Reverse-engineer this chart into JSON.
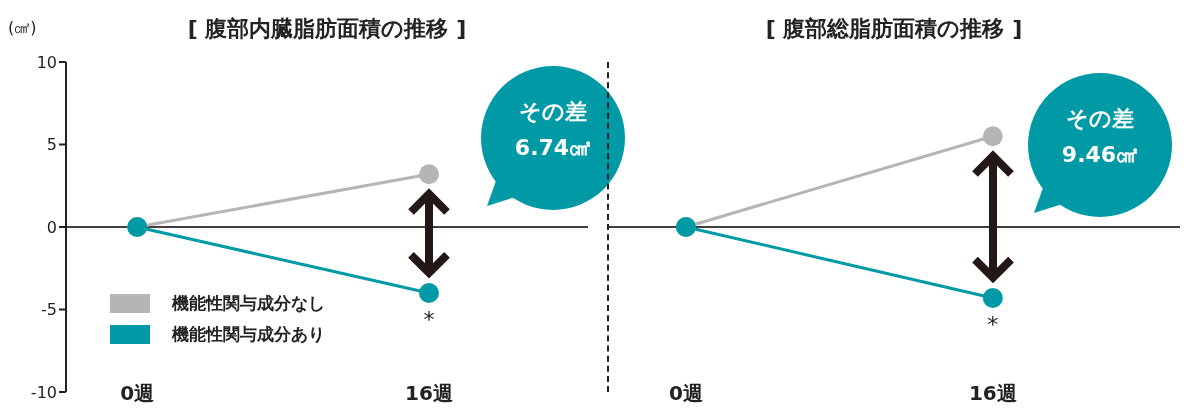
{
  "chart_data": [
    {
      "type": "line",
      "title": "[ 腹部内臓脂肪面積の推移 ]",
      "ylabel": "(㎠)",
      "categories": [
        "0週",
        "16週"
      ],
      "series": [
        {
          "name": "機能性関与成分なし",
          "color": "#b5b5b5",
          "values": [
            0,
            3.2
          ]
        },
        {
          "name": "機能性関与成分あり",
          "color": "#009aa6",
          "values": [
            0,
            -4.0
          ]
        }
      ],
      "ylim": [
        -10,
        10
      ],
      "yticks": [
        -10,
        -5,
        0,
        5,
        10
      ],
      "ref_lines": [
        {
          "axis": "y",
          "value": 0,
          "color": "#000000"
        }
      ],
      "legend": "bottom left",
      "marker": "circle",
      "annotations": [
        "その差 6.74㎠",
        {
          "text": "*",
          "x": "16週",
          "y": -4.0
        }
      ]
    },
    {
      "type": "line",
      "title": "[ 腹部総脂肪面積の推移 ]",
      "categories": [
        "0週",
        "16週"
      ],
      "series": [
        {
          "color": "#b5b5b5",
          "values": [
            0,
            5.5
          ]
        },
        {
          "color": "#009aa6",
          "values": [
            0,
            -4.3
          ]
        }
      ],
      "ylim": [
        -10,
        10
      ],
      "yticks": [
        -10,
        -5,
        0,
        5,
        10
      ],
      "tick_labels": "x",
      "ref_lines": [
        {
          "axis": "y",
          "value": 0,
          "color": "#000000"
        }
      ],
      "marker": "circle",
      "annotations": [
        "その差 9.46㎠",
        {
          "text": "*",
          "x": "16週",
          "y": -4.3
        }
      ]
    }
  ]
}
